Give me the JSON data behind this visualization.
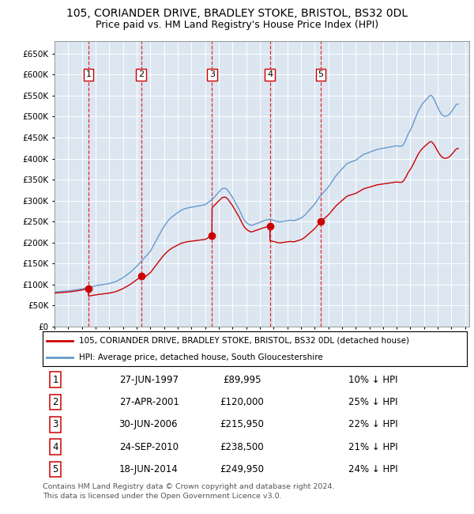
{
  "title": "105, CORIANDER DRIVE, BRADLEY STOKE, BRISTOL, BS32 0DL",
  "subtitle": "Price paid vs. HM Land Registry's House Price Index (HPI)",
  "ylim": [
    0,
    680000
  ],
  "yticks": [
    0,
    50000,
    100000,
    150000,
    200000,
    250000,
    300000,
    350000,
    400000,
    450000,
    500000,
    550000,
    600000,
    650000
  ],
  "background_color": "#dce6f1",
  "grid_color": "#c8d8e8",
  "sale_dates_x": [
    1997.48,
    2001.32,
    2006.5,
    2010.73,
    2014.46
  ],
  "sale_prices_y": [
    89995,
    120000,
    215950,
    238500,
    249950
  ],
  "sale_labels": [
    "1",
    "2",
    "3",
    "4",
    "5"
  ],
  "legend_line1": "105, CORIANDER DRIVE, BRADLEY STOKE, BRISTOL, BS32 0DL (detached house)",
  "legend_line2": "HPI: Average price, detached house, South Gloucestershire",
  "table_rows": [
    [
      "1",
      "27-JUN-1997",
      "£89,995",
      "10% ↓ HPI"
    ],
    [
      "2",
      "27-APR-2001",
      "£120,000",
      "25% ↓ HPI"
    ],
    [
      "3",
      "30-JUN-2006",
      "£215,950",
      "22% ↓ HPI"
    ],
    [
      "4",
      "24-SEP-2010",
      "£238,500",
      "21% ↓ HPI"
    ],
    [
      "5",
      "18-JUN-2014",
      "£249,950",
      "24% ↓ HPI"
    ]
  ],
  "footer": "Contains HM Land Registry data © Crown copyright and database right 2024.\nThis data is licensed under the Open Government Licence v3.0.",
  "red_line_color": "#cc0000",
  "blue_line_color": "#6699cc",
  "hpi_data": [
    [
      1995.0,
      82000
    ],
    [
      1995.08,
      82200
    ],
    [
      1995.17,
      82400
    ],
    [
      1995.25,
      82600
    ],
    [
      1995.33,
      82700
    ],
    [
      1995.42,
      82900
    ],
    [
      1995.5,
      83100
    ],
    [
      1995.58,
      83300
    ],
    [
      1995.67,
      83500
    ],
    [
      1995.75,
      83700
    ],
    [
      1995.83,
      83900
    ],
    [
      1995.92,
      84100
    ],
    [
      1996.0,
      84500
    ],
    [
      1996.08,
      84900
    ],
    [
      1996.17,
      85300
    ],
    [
      1996.25,
      85700
    ],
    [
      1996.33,
      86100
    ],
    [
      1996.42,
      86500
    ],
    [
      1996.5,
      86900
    ],
    [
      1996.58,
      87300
    ],
    [
      1996.67,
      87700
    ],
    [
      1996.75,
      88100
    ],
    [
      1996.83,
      88500
    ],
    [
      1996.92,
      88900
    ],
    [
      1997.0,
      89500
    ],
    [
      1997.08,
      90100
    ],
    [
      1997.17,
      90700
    ],
    [
      1997.25,
      91300
    ],
    [
      1997.33,
      91900
    ],
    [
      1997.42,
      92500
    ],
    [
      1997.5,
      93100
    ],
    [
      1997.58,
      93700
    ],
    [
      1997.67,
      94300
    ],
    [
      1997.75,
      94900
    ],
    [
      1997.83,
      95500
    ],
    [
      1997.92,
      96100
    ],
    [
      1998.0,
      96700
    ],
    [
      1998.08,
      97300
    ],
    [
      1998.17,
      97900
    ],
    [
      1998.25,
      98300
    ],
    [
      1998.33,
      98700
    ],
    [
      1998.42,
      99100
    ],
    [
      1998.5,
      99500
    ],
    [
      1998.58,
      99900
    ],
    [
      1998.67,
      100300
    ],
    [
      1998.75,
      100700
    ],
    [
      1998.83,
      101100
    ],
    [
      1998.92,
      101500
    ],
    [
      1999.0,
      102000
    ],
    [
      1999.08,
      102800
    ],
    [
      1999.17,
      103600
    ],
    [
      1999.25,
      104400
    ],
    [
      1999.33,
      105200
    ],
    [
      1999.42,
      106000
    ],
    [
      1999.5,
      107000
    ],
    [
      1999.58,
      108500
    ],
    [
      1999.67,
      110000
    ],
    [
      1999.75,
      111500
    ],
    [
      1999.83,
      113000
    ],
    [
      1999.92,
      114500
    ],
    [
      2000.0,
      116000
    ],
    [
      2000.08,
      118000
    ],
    [
      2000.17,
      120000
    ],
    [
      2000.25,
      122000
    ],
    [
      2000.33,
      124000
    ],
    [
      2000.42,
      126000
    ],
    [
      2000.5,
      128000
    ],
    [
      2000.58,
      130500
    ],
    [
      2000.67,
      133000
    ],
    [
      2000.75,
      135500
    ],
    [
      2000.83,
      138000
    ],
    [
      2000.92,
      140500
    ],
    [
      2001.0,
      143000
    ],
    [
      2001.08,
      146000
    ],
    [
      2001.17,
      149000
    ],
    [
      2001.25,
      152000
    ],
    [
      2001.33,
      155000
    ],
    [
      2001.42,
      158000
    ],
    [
      2001.5,
      161000
    ],
    [
      2001.58,
      164000
    ],
    [
      2001.67,
      167000
    ],
    [
      2001.75,
      170000
    ],
    [
      2001.83,
      173000
    ],
    [
      2001.92,
      176000
    ],
    [
      2002.0,
      179000
    ],
    [
      2002.08,
      184000
    ],
    [
      2002.17,
      189000
    ],
    [
      2002.25,
      194000
    ],
    [
      2002.33,
      199000
    ],
    [
      2002.42,
      204000
    ],
    [
      2002.5,
      209000
    ],
    [
      2002.58,
      214000
    ],
    [
      2002.67,
      219000
    ],
    [
      2002.75,
      224000
    ],
    [
      2002.83,
      229000
    ],
    [
      2002.92,
      234000
    ],
    [
      2003.0,
      238000
    ],
    [
      2003.08,
      242000
    ],
    [
      2003.17,
      246000
    ],
    [
      2003.25,
      250000
    ],
    [
      2003.33,
      253000
    ],
    [
      2003.42,
      256000
    ],
    [
      2003.5,
      259000
    ],
    [
      2003.58,
      261000
    ],
    [
      2003.67,
      263000
    ],
    [
      2003.75,
      265000
    ],
    [
      2003.83,
      267000
    ],
    [
      2003.92,
      269000
    ],
    [
      2004.0,
      271000
    ],
    [
      2004.08,
      273000
    ],
    [
      2004.17,
      275000
    ],
    [
      2004.25,
      277000
    ],
    [
      2004.33,
      278000
    ],
    [
      2004.42,
      279000
    ],
    [
      2004.5,
      280000
    ],
    [
      2004.58,
      281000
    ],
    [
      2004.67,
      282000
    ],
    [
      2004.75,
      282500
    ],
    [
      2004.83,
      283000
    ],
    [
      2004.92,
      283500
    ],
    [
      2005.0,
      284000
    ],
    [
      2005.08,
      284500
    ],
    [
      2005.17,
      285000
    ],
    [
      2005.25,
      285500
    ],
    [
      2005.33,
      286000
    ],
    [
      2005.42,
      286500
    ],
    [
      2005.5,
      287000
    ],
    [
      2005.58,
      287500
    ],
    [
      2005.67,
      288000
    ],
    [
      2005.75,
      288500
    ],
    [
      2005.83,
      289000
    ],
    [
      2005.92,
      289500
    ],
    [
      2006.0,
      290000
    ],
    [
      2006.08,
      292000
    ],
    [
      2006.17,
      294000
    ],
    [
      2006.25,
      296000
    ],
    [
      2006.33,
      298000
    ],
    [
      2006.42,
      300000
    ],
    [
      2006.5,
      302000
    ],
    [
      2006.58,
      305000
    ],
    [
      2006.67,
      308000
    ],
    [
      2006.75,
      311000
    ],
    [
      2006.83,
      314000
    ],
    [
      2006.92,
      317000
    ],
    [
      2007.0,
      320000
    ],
    [
      2007.08,
      323000
    ],
    [
      2007.17,
      326000
    ],
    [
      2007.25,
      328000
    ],
    [
      2007.33,
      329000
    ],
    [
      2007.42,
      329500
    ],
    [
      2007.5,
      329000
    ],
    [
      2007.58,
      327000
    ],
    [
      2007.67,
      324000
    ],
    [
      2007.75,
      320000
    ],
    [
      2007.83,
      316000
    ],
    [
      2007.92,
      312000
    ],
    [
      2008.0,
      308000
    ],
    [
      2008.08,
      303000
    ],
    [
      2008.17,
      298000
    ],
    [
      2008.25,
      293000
    ],
    [
      2008.33,
      288000
    ],
    [
      2008.42,
      283000
    ],
    [
      2008.5,
      278000
    ],
    [
      2008.58,
      272000
    ],
    [
      2008.67,
      266000
    ],
    [
      2008.75,
      260000
    ],
    [
      2008.83,
      255000
    ],
    [
      2008.92,
      251000
    ],
    [
      2009.0,
      248000
    ],
    [
      2009.08,
      246000
    ],
    [
      2009.17,
      244000
    ],
    [
      2009.25,
      242000
    ],
    [
      2009.33,
      241000
    ],
    [
      2009.42,
      241000
    ],
    [
      2009.5,
      242000
    ],
    [
      2009.58,
      243000
    ],
    [
      2009.67,
      244000
    ],
    [
      2009.75,
      245000
    ],
    [
      2009.83,
      246000
    ],
    [
      2009.92,
      247000
    ],
    [
      2010.0,
      248000
    ],
    [
      2010.08,
      249000
    ],
    [
      2010.17,
      250000
    ],
    [
      2010.25,
      251000
    ],
    [
      2010.33,
      252000
    ],
    [
      2010.42,
      253000
    ],
    [
      2010.5,
      254000
    ],
    [
      2010.58,
      254500
    ],
    [
      2010.67,
      255000
    ],
    [
      2010.75,
      255000
    ],
    [
      2010.83,
      254500
    ],
    [
      2010.92,
      254000
    ],
    [
      2011.0,
      253000
    ],
    [
      2011.08,
      252000
    ],
    [
      2011.17,
      251000
    ],
    [
      2011.25,
      250000
    ],
    [
      2011.33,
      249500
    ],
    [
      2011.42,
      249000
    ],
    [
      2011.5,
      249000
    ],
    [
      2011.58,
      249500
    ],
    [
      2011.67,
      250000
    ],
    [
      2011.75,
      250500
    ],
    [
      2011.83,
      251000
    ],
    [
      2011.92,
      251500
    ],
    [
      2012.0,
      252000
    ],
    [
      2012.08,
      252500
    ],
    [
      2012.17,
      253000
    ],
    [
      2012.25,
      253000
    ],
    [
      2012.33,
      252500
    ],
    [
      2012.42,
      252000
    ],
    [
      2012.5,
      252000
    ],
    [
      2012.58,
      253000
    ],
    [
      2012.67,
      254000
    ],
    [
      2012.75,
      255000
    ],
    [
      2012.83,
      256000
    ],
    [
      2012.92,
      257000
    ],
    [
      2013.0,
      258000
    ],
    [
      2013.08,
      260000
    ],
    [
      2013.17,
      262000
    ],
    [
      2013.25,
      264000
    ],
    [
      2013.33,
      267000
    ],
    [
      2013.42,
      270000
    ],
    [
      2013.5,
      273000
    ],
    [
      2013.58,
      276000
    ],
    [
      2013.67,
      279000
    ],
    [
      2013.75,
      282000
    ],
    [
      2013.83,
      285000
    ],
    [
      2013.92,
      288000
    ],
    [
      2014.0,
      291000
    ],
    [
      2014.08,
      295000
    ],
    [
      2014.17,
      299000
    ],
    [
      2014.25,
      303000
    ],
    [
      2014.33,
      307000
    ],
    [
      2014.42,
      311000
    ],
    [
      2014.5,
      314000
    ],
    [
      2014.58,
      317000
    ],
    [
      2014.67,
      320000
    ],
    [
      2014.75,
      323000
    ],
    [
      2014.83,
      326000
    ],
    [
      2014.92,
      329000
    ],
    [
      2015.0,
      332000
    ],
    [
      2015.08,
      336000
    ],
    [
      2015.17,
      340000
    ],
    [
      2015.25,
      344000
    ],
    [
      2015.33,
      348000
    ],
    [
      2015.42,
      352000
    ],
    [
      2015.5,
      356000
    ],
    [
      2015.58,
      360000
    ],
    [
      2015.67,
      363000
    ],
    [
      2015.75,
      366000
    ],
    [
      2015.83,
      369000
    ],
    [
      2015.92,
      372000
    ],
    [
      2016.0,
      375000
    ],
    [
      2016.08,
      378000
    ],
    [
      2016.17,
      381000
    ],
    [
      2016.25,
      384000
    ],
    [
      2016.33,
      387000
    ],
    [
      2016.42,
      389000
    ],
    [
      2016.5,
      390000
    ],
    [
      2016.58,
      391000
    ],
    [
      2016.67,
      392000
    ],
    [
      2016.75,
      393000
    ],
    [
      2016.83,
      394000
    ],
    [
      2016.92,
      395000
    ],
    [
      2017.0,
      396000
    ],
    [
      2017.08,
      398000
    ],
    [
      2017.17,
      400000
    ],
    [
      2017.25,
      402000
    ],
    [
      2017.33,
      404000
    ],
    [
      2017.42,
      406000
    ],
    [
      2017.5,
      408000
    ],
    [
      2017.58,
      410000
    ],
    [
      2017.67,
      411000
    ],
    [
      2017.75,
      412000
    ],
    [
      2017.83,
      413000
    ],
    [
      2017.92,
      414000
    ],
    [
      2018.0,
      415000
    ],
    [
      2018.08,
      416000
    ],
    [
      2018.17,
      417000
    ],
    [
      2018.25,
      418000
    ],
    [
      2018.33,
      419000
    ],
    [
      2018.42,
      420000
    ],
    [
      2018.5,
      421000
    ],
    [
      2018.58,
      422000
    ],
    [
      2018.67,
      422500
    ],
    [
      2018.75,
      423000
    ],
    [
      2018.83,
      423500
    ],
    [
      2018.92,
      424000
    ],
    [
      2019.0,
      424500
    ],
    [
      2019.08,
      425000
    ],
    [
      2019.17,
      425500
    ],
    [
      2019.25,
      426000
    ],
    [
      2019.33,
      426500
    ],
    [
      2019.42,
      427000
    ],
    [
      2019.5,
      427500
    ],
    [
      2019.58,
      428000
    ],
    [
      2019.67,
      428500
    ],
    [
      2019.75,
      429000
    ],
    [
      2019.83,
      429500
    ],
    [
      2019.92,
      430000
    ],
    [
      2020.0,
      430500
    ],
    [
      2020.08,
      430000
    ],
    [
      2020.17,
      429500
    ],
    [
      2020.25,
      429000
    ],
    [
      2020.33,
      429500
    ],
    [
      2020.42,
      431000
    ],
    [
      2020.5,
      434000
    ],
    [
      2020.58,
      439000
    ],
    [
      2020.67,
      445000
    ],
    [
      2020.75,
      452000
    ],
    [
      2020.83,
      458000
    ],
    [
      2020.92,
      463000
    ],
    [
      2021.0,
      468000
    ],
    [
      2021.08,
      474000
    ],
    [
      2021.17,
      480000
    ],
    [
      2021.25,
      487000
    ],
    [
      2021.33,
      494000
    ],
    [
      2021.42,
      501000
    ],
    [
      2021.5,
      508000
    ],
    [
      2021.58,
      514000
    ],
    [
      2021.67,
      519000
    ],
    [
      2021.75,
      524000
    ],
    [
      2021.83,
      528000
    ],
    [
      2021.92,
      532000
    ],
    [
      2022.0,
      535000
    ],
    [
      2022.08,
      538000
    ],
    [
      2022.17,
      541000
    ],
    [
      2022.25,
      544000
    ],
    [
      2022.33,
      547000
    ],
    [
      2022.42,
      550000
    ],
    [
      2022.5,
      551000
    ],
    [
      2022.58,
      549000
    ],
    [
      2022.67,
      545000
    ],
    [
      2022.75,
      540000
    ],
    [
      2022.83,
      534000
    ],
    [
      2022.92,
      528000
    ],
    [
      2023.0,
      522000
    ],
    [
      2023.08,
      516000
    ],
    [
      2023.17,
      511000
    ],
    [
      2023.25,
      507000
    ],
    [
      2023.33,
      504000
    ],
    [
      2023.42,
      502000
    ],
    [
      2023.5,
      501000
    ],
    [
      2023.58,
      501000
    ],
    [
      2023.67,
      502000
    ],
    [
      2023.75,
      503000
    ],
    [
      2023.83,
      505000
    ],
    [
      2023.92,
      508000
    ],
    [
      2024.0,
      512000
    ],
    [
      2024.08,
      516000
    ],
    [
      2024.17,
      520000
    ],
    [
      2024.25,
      524000
    ],
    [
      2024.33,
      528000
    ],
    [
      2024.42,
      530000
    ],
    [
      2024.5,
      530000
    ]
  ]
}
